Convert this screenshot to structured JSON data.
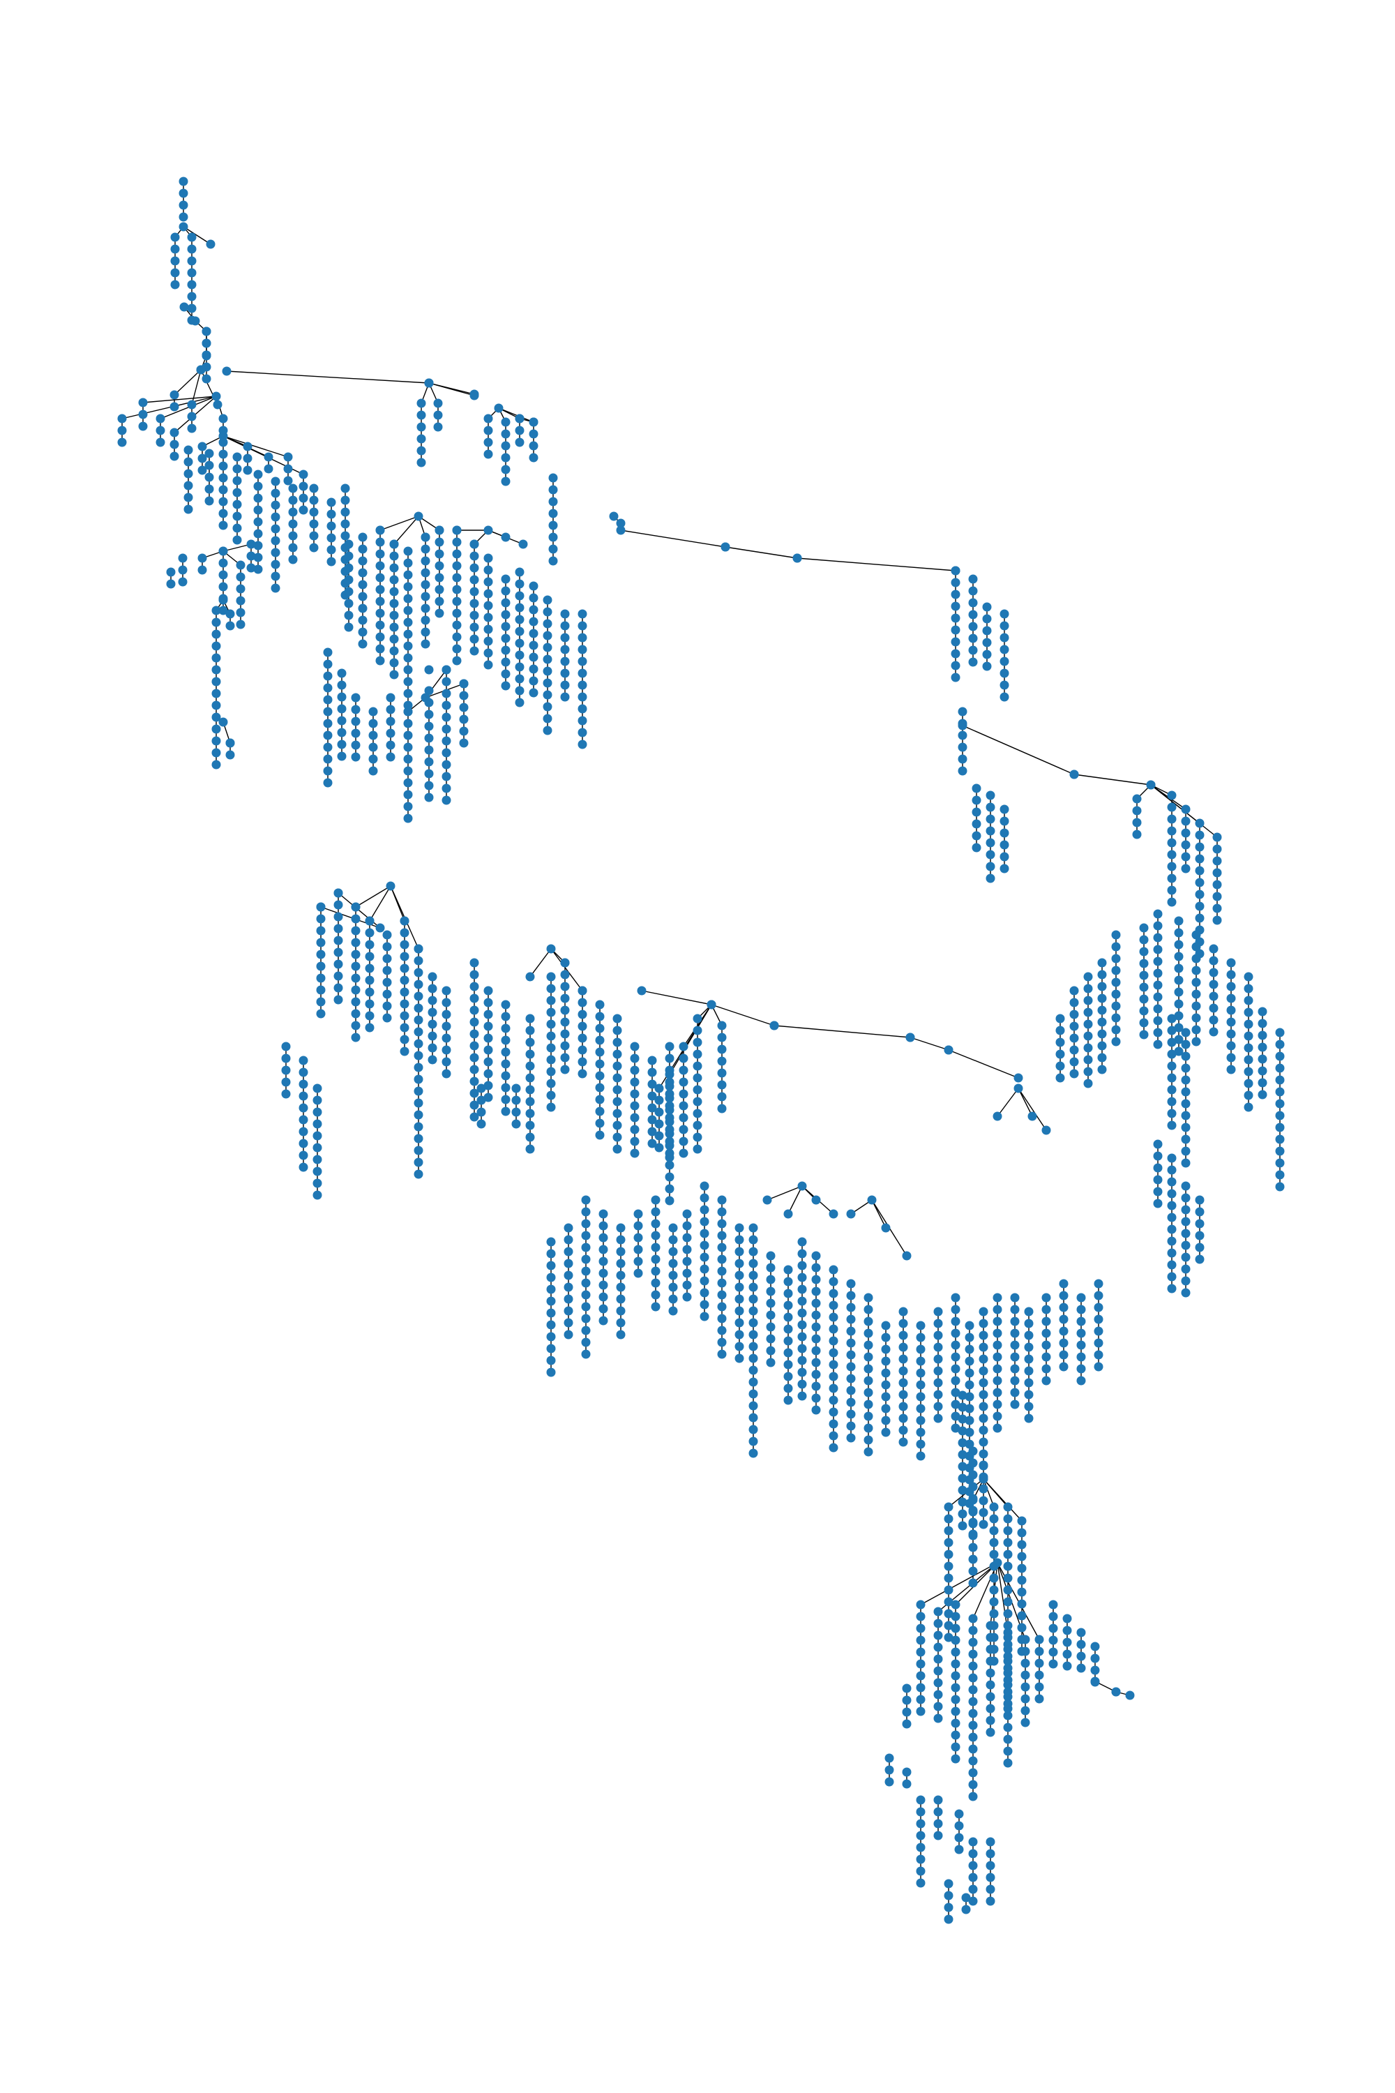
{
  "diagram": {
    "kind": "directed tree graph",
    "node_color": "#1f77b4",
    "edge_color": "#000000",
    "background": "#ffffff",
    "labels": []
  }
}
